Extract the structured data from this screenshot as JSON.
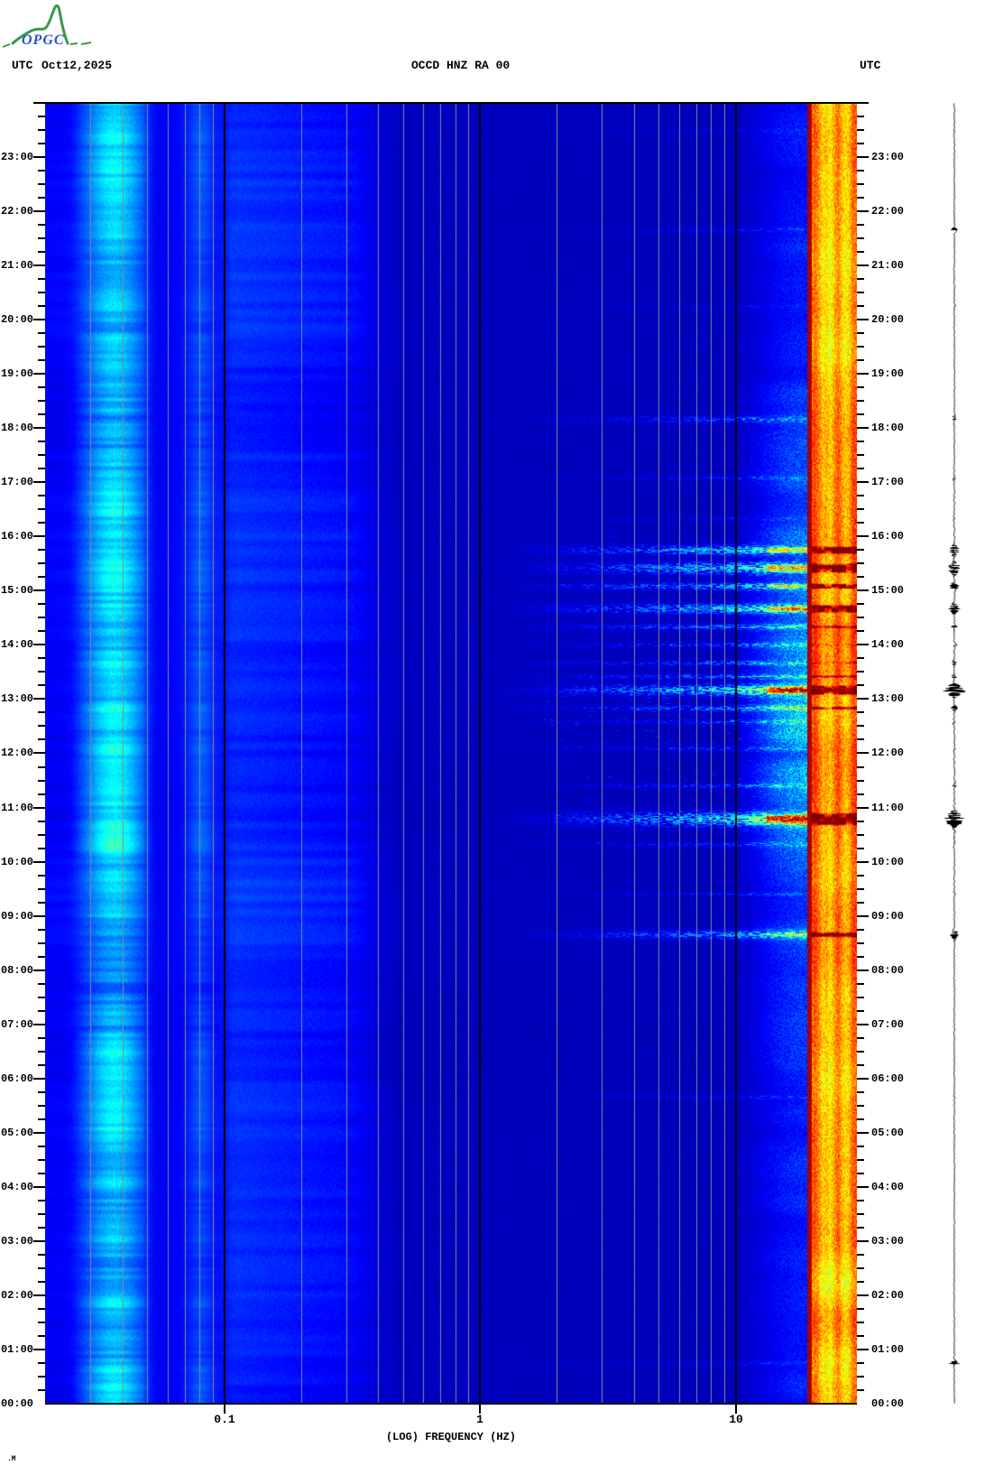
{
  "header": {
    "utc_left": "UTC",
    "date": "Oct12,2025",
    "title": "OCCD HNZ RA 00",
    "utc_right": "UTC"
  },
  "logo": {
    "text": "OPGC"
  },
  "footer_mark": ".M",
  "chart_data": {
    "type": "heatmap",
    "subtype": "seismic-spectrogram",
    "title": "OCCD HNZ RA 00",
    "date": "Oct12,2025",
    "xlabel": "(LOG) FREQUENCY (HZ)",
    "x_scale": "log10",
    "freq_range_hz": [
      0.02,
      30
    ],
    "x_major_ticks": [
      0.1,
      1,
      10
    ],
    "x_tick_labels": [
      "0.1",
      "1",
      "10"
    ],
    "x_minor_gridlines": [
      0.03,
      0.04,
      0.05,
      0.06,
      0.07,
      0.08,
      0.09,
      0.2,
      0.3,
      0.4,
      0.5,
      0.6,
      0.7,
      0.8,
      0.9,
      2,
      3,
      4,
      5,
      6,
      7,
      8,
      9
    ],
    "time_axis": {
      "direction": "up",
      "start": "00:00",
      "end": "24:00",
      "minor_tick_minutes": 15,
      "hour_labels": [
        "00:00",
        "01:00",
        "02:00",
        "03:00",
        "04:00",
        "05:00",
        "06:00",
        "07:00",
        "08:00",
        "09:00",
        "10:00",
        "11:00",
        "12:00",
        "13:00",
        "14:00",
        "15:00",
        "16:00",
        "17:00",
        "18:00",
        "19:00",
        "20:00",
        "21:00",
        "22:00",
        "23:00"
      ]
    },
    "colormap": "jet",
    "colormap_anchors": [
      "#000083",
      "#0000ff",
      "#00ffff",
      "#ffff00",
      "#ff0000",
      "#800000"
    ],
    "grid_minor_color": "#8a8a8a",
    "grid_major_color": "#000000",
    "features": {
      "microseism_band_hz": [
        0.025,
        0.05
      ],
      "secondary_band_hz": [
        0.07,
        0.09
      ],
      "persistent_line_hz": 20,
      "persistent_line_color": "#a00000",
      "bright_band_hz": [
        20,
        30
      ],
      "hf_daytime_haze_hz": [
        9,
        20
      ],
      "events": [
        {
          "time": "23:30",
          "duration_min": 3,
          "intensity": 0.18,
          "trace": 0.1
        },
        {
          "time": "21:40",
          "duration_min": 4,
          "intensity": 0.22,
          "trace": 0.35
        },
        {
          "time": "20:15",
          "duration_min": 3,
          "intensity": 0.18,
          "trace": 0.1
        },
        {
          "time": "18:10",
          "duration_min": 6,
          "intensity": 0.45,
          "trace": 0.2
        },
        {
          "time": "17:05",
          "duration_min": 4,
          "intensity": 0.28,
          "trace": 0.15
        },
        {
          "time": "16:20",
          "duration_min": 3,
          "intensity": 0.25,
          "trace": 0.1
        },
        {
          "time": "15:45",
          "duration_min": 8,
          "intensity": 0.85,
          "trace": 0.5
        },
        {
          "time": "15:25",
          "duration_min": 10,
          "intensity": 0.9,
          "trace": 0.55
        },
        {
          "time": "15:05",
          "duration_min": 6,
          "intensity": 0.8,
          "trace": 0.45
        },
        {
          "time": "14:40",
          "duration_min": 8,
          "intensity": 0.9,
          "trace": 0.5
        },
        {
          "time": "14:20",
          "duration_min": 5,
          "intensity": 0.6,
          "trace": 0.3
        },
        {
          "time": "14:00",
          "duration_min": 4,
          "intensity": 0.5,
          "trace": 0.2
        },
        {
          "time": "13:40",
          "duration_min": 4,
          "intensity": 0.55,
          "trace": 0.25
        },
        {
          "time": "13:25",
          "duration_min": 4,
          "intensity": 0.6,
          "trace": 0.3
        },
        {
          "time": "13:10",
          "duration_min": 9,
          "intensity": 1.0,
          "trace": 1.0
        },
        {
          "time": "12:50",
          "duration_min": 5,
          "intensity": 0.65,
          "trace": 0.3
        },
        {
          "time": "12:35",
          "duration_min": 4,
          "intensity": 0.45,
          "trace": 0.2
        },
        {
          "time": "12:05",
          "duration_min": 4,
          "intensity": 0.4,
          "trace": 0.15
        },
        {
          "time": "11:25",
          "duration_min": 4,
          "intensity": 0.45,
          "trace": 0.2
        },
        {
          "time": "10:48",
          "duration_min": 12,
          "intensity": 1.0,
          "trace": 0.9
        },
        {
          "time": "10:20",
          "duration_min": 4,
          "intensity": 0.4,
          "trace": 0.15
        },
        {
          "time": "09:25",
          "duration_min": 3,
          "intensity": 0.3,
          "trace": 0.1
        },
        {
          "time": "08:40",
          "duration_min": 7,
          "intensity": 0.7,
          "trace": 0.4
        },
        {
          "time": "05:40",
          "duration_min": 3,
          "intensity": 0.25,
          "trace": 0.1
        },
        {
          "time": "00:45",
          "duration_min": 4,
          "intensity": 0.2,
          "trace": 0.45
        }
      ]
    },
    "side_trace": {
      "present": true,
      "position": "right",
      "color": "#000000"
    }
  }
}
